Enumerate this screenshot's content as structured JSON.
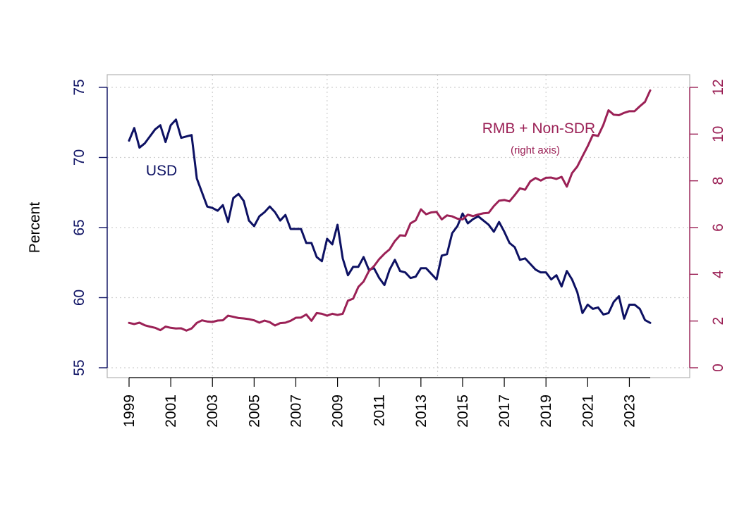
{
  "chart_data": {
    "type": "line",
    "xlabel": "",
    "ylabel": "Percent",
    "x_ticks": [
      "1999",
      "2001",
      "2003",
      "2005",
      "2007",
      "2009",
      "2011",
      "2013",
      "2015",
      "2017",
      "2019",
      "2021",
      "2023"
    ],
    "y_left": {
      "ylim": [
        55,
        75
      ],
      "ticks": [
        "55",
        "60",
        "65",
        "70",
        "75"
      ],
      "color": "#0d1163"
    },
    "y_right": {
      "ylim": [
        0,
        12
      ],
      "ticks": [
        "0",
        "2",
        "4",
        "6",
        "8",
        "10",
        "12"
      ],
      "color": "#9b2156"
    },
    "grid": true,
    "x_start": 1999.0,
    "x_step": 0.25,
    "series": [
      {
        "name": "USD",
        "axis": "left",
        "color": "#0d1163",
        "values": [
          71.2,
          72.1,
          70.7,
          71.0,
          71.5,
          72.0,
          72.3,
          71.1,
          72.3,
          72.7,
          71.4,
          71.5,
          71.6,
          68.5,
          67.5,
          66.5,
          66.4,
          66.2,
          66.6,
          65.4,
          67.1,
          67.4,
          66.9,
          65.5,
          65.1,
          65.8,
          66.1,
          66.5,
          66.1,
          65.5,
          65.9,
          64.9,
          64.9,
          64.9,
          63.9,
          63.9,
          62.9,
          62.6,
          64.2,
          63.8,
          65.2,
          62.8,
          61.6,
          62.2,
          62.2,
          62.9,
          62.0,
          62.1,
          61.4,
          60.9,
          62.0,
          62.7,
          61.9,
          61.8,
          61.4,
          61.5,
          62.1,
          62.1,
          61.7,
          61.3,
          63.0,
          63.1,
          64.6,
          65.1,
          66.0,
          65.3,
          65.6,
          65.8,
          65.5,
          65.2,
          64.7,
          65.4,
          64.7,
          63.9,
          63.6,
          62.7,
          62.8,
          62.4,
          62.0,
          61.8,
          61.8,
          61.3,
          61.6,
          60.8,
          61.9,
          61.3,
          60.4,
          58.9,
          59.5,
          59.2,
          59.3,
          58.8,
          58.9,
          59.7,
          60.1,
          58.5,
          59.5,
          59.5,
          59.2,
          58.4,
          58.2
        ]
      },
      {
        "name": "RMB + Non-SDR",
        "axis": "right",
        "color": "#9b2156",
        "values": [
          1.92,
          1.87,
          1.93,
          1.82,
          1.76,
          1.71,
          1.61,
          1.76,
          1.71,
          1.68,
          1.69,
          1.59,
          1.68,
          1.92,
          2.03,
          1.98,
          1.96,
          2.02,
          2.03,
          2.23,
          2.18,
          2.13,
          2.11,
          2.08,
          2.03,
          1.93,
          2.02,
          1.95,
          1.81,
          1.91,
          1.93,
          2.01,
          2.14,
          2.15,
          2.28,
          2.01,
          2.34,
          2.31,
          2.23,
          2.31,
          2.26,
          2.31,
          2.87,
          2.96,
          3.46,
          3.69,
          4.13,
          4.35,
          4.65,
          4.88,
          5.07,
          5.42,
          5.67,
          5.65,
          6.18,
          6.31,
          6.78,
          6.57,
          6.65,
          6.67,
          6.35,
          6.52,
          6.48,
          6.38,
          6.35,
          6.55,
          6.49,
          6.56,
          6.61,
          6.63,
          6.92,
          7.15,
          7.18,
          7.12,
          7.39,
          7.68,
          7.62,
          7.98,
          8.12,
          8.01,
          8.13,
          8.14,
          8.08,
          8.17,
          7.75,
          8.33,
          8.61,
          9.05,
          9.48,
          9.97,
          9.92,
          10.39,
          11.02,
          10.83,
          10.81,
          10.91,
          10.98,
          10.98,
          11.19,
          11.38,
          11.87
        ]
      }
    ],
    "annotations": [
      {
        "text": "USD",
        "color": "#0d1163"
      },
      {
        "text": "RMB + Non-SDR",
        "color": "#9b2156"
      },
      {
        "text": "(right axis)",
        "color": "#9b2156"
      }
    ]
  }
}
